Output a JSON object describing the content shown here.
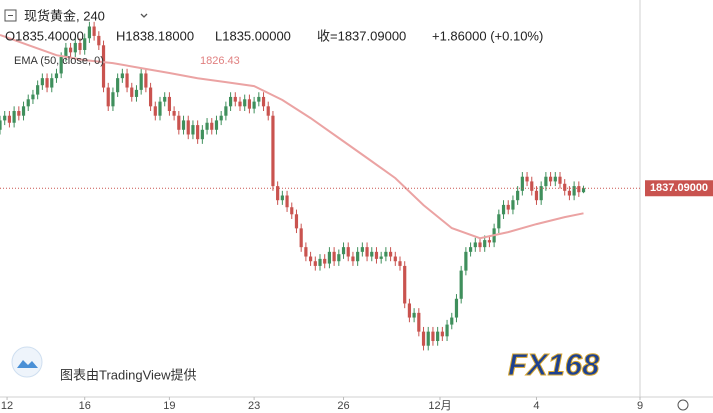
{
  "header": {
    "symbol": "现货黄金, 240",
    "open": "O1835.40000",
    "high": "H1838.18000",
    "low": "L1835.00000",
    "close": "收=1837.09000",
    "change": "+1.86000 (+0.10%)"
  },
  "chart_data": {
    "type": "candlestick",
    "candles": {
      "open": [
        1862,
        1866,
        1868,
        1865,
        1870,
        1868,
        1872,
        1875,
        1877,
        1881,
        1884,
        1880,
        1884,
        1886,
        1893,
        1897,
        1895,
        1899,
        1896,
        1901,
        1906,
        1902,
        1898,
        1880,
        1872,
        1878,
        1884,
        1886,
        1880,
        1876,
        1879,
        1886,
        1880,
        1872,
        1868,
        1874,
        1876,
        1870,
        1868,
        1862,
        1866,
        1860,
        1864,
        1858,
        1862,
        1865,
        1862,
        1866,
        1868,
        1872,
        1876,
        1874,
        1872,
        1875,
        1871,
        1874,
        1876,
        1872,
        1868,
        1838,
        1832,
        1834,
        1829,
        1826,
        1820,
        1812,
        1808,
        1806,
        1804,
        1807,
        1805,
        1810,
        1806,
        1809,
        1812,
        1808,
        1806,
        1810,
        1812,
        1808,
        1810,
        1807,
        1808,
        1810,
        1808,
        1806,
        1804,
        1788,
        1782,
        1784,
        1776,
        1770,
        1776,
        1772,
        1776,
        1774,
        1779,
        1782,
        1790,
        1802,
        1810,
        1812,
        1814,
        1812,
        1815,
        1814,
        1820,
        1826,
        1830,
        1828,
        1832,
        1836,
        1842,
        1840,
        1836,
        1832,
        1838,
        1842,
        1840,
        1842,
        1839,
        1836,
        1834,
        1838,
        1835.4
      ],
      "high": [
        1868,
        1870,
        1870,
        1872,
        1872,
        1874,
        1877,
        1879,
        1883,
        1886,
        1886,
        1886,
        1888,
        1895,
        1899,
        1899,
        1901,
        1901,
        1903,
        1908,
        1908,
        1904,
        1900,
        1882,
        1880,
        1886,
        1888,
        1888,
        1882,
        1881,
        1888,
        1888,
        1882,
        1874,
        1876,
        1878,
        1878,
        1872,
        1870,
        1868,
        1868,
        1866,
        1866,
        1864,
        1867,
        1867,
        1868,
        1870,
        1874,
        1878,
        1878,
        1876,
        1877,
        1877,
        1876,
        1878,
        1878,
        1874,
        1870,
        1840,
        1836,
        1836,
        1831,
        1828,
        1822,
        1814,
        1810,
        1808,
        1809,
        1809,
        1812,
        1812,
        1811,
        1814,
        1814,
        1810,
        1812,
        1814,
        1814,
        1812,
        1812,
        1810,
        1812,
        1812,
        1810,
        1808,
        1806,
        1790,
        1786,
        1786,
        1778,
        1778,
        1778,
        1778,
        1778,
        1781,
        1784,
        1792,
        1804,
        1812,
        1814,
        1816,
        1816,
        1817,
        1817,
        1822,
        1828,
        1832,
        1832,
        1834,
        1838,
        1844,
        1844,
        1842,
        1838,
        1840,
        1844,
        1844,
        1844,
        1844,
        1841,
        1838,
        1840,
        1840,
        1838.18
      ],
      "low": [
        1860,
        1864,
        1863,
        1863,
        1866,
        1866,
        1870,
        1873,
        1875,
        1879,
        1878,
        1878,
        1882,
        1884,
        1891,
        1893,
        1893,
        1894,
        1894,
        1899,
        1900,
        1896,
        1878,
        1870,
        1870,
        1876,
        1882,
        1878,
        1874,
        1874,
        1877,
        1878,
        1870,
        1866,
        1866,
        1872,
        1868,
        1866,
        1860,
        1860,
        1858,
        1858,
        1856,
        1856,
        1860,
        1860,
        1860,
        1864,
        1866,
        1870,
        1872,
        1870,
        1870,
        1869,
        1869,
        1872,
        1870,
        1866,
        1836,
        1830,
        1830,
        1827,
        1824,
        1818,
        1810,
        1806,
        1804,
        1802,
        1802,
        1803,
        1803,
        1804,
        1804,
        1807,
        1806,
        1804,
        1804,
        1808,
        1806,
        1806,
        1805,
        1805,
        1806,
        1806,
        1804,
        1802,
        1786,
        1780,
        1780,
        1774,
        1768,
        1768,
        1770,
        1770,
        1772,
        1772,
        1777,
        1780,
        1788,
        1800,
        1808,
        1810,
        1810,
        1810,
        1812,
        1812,
        1818,
        1824,
        1826,
        1826,
        1830,
        1834,
        1838,
        1834,
        1830,
        1830,
        1836,
        1838,
        1838,
        1837,
        1834,
        1832,
        1832,
        1833.4,
        1835
      ],
      "close": [
        1866,
        1868,
        1865,
        1870,
        1868,
        1872,
        1875,
        1877,
        1881,
        1884,
        1880,
        1884,
        1886,
        1893,
        1897,
        1895,
        1899,
        1896,
        1901,
        1906,
        1902,
        1898,
        1880,
        1872,
        1878,
        1884,
        1886,
        1880,
        1876,
        1879,
        1886,
        1880,
        1872,
        1868,
        1874,
        1876,
        1870,
        1868,
        1862,
        1866,
        1860,
        1864,
        1858,
        1862,
        1865,
        1862,
        1866,
        1868,
        1872,
        1876,
        1874,
        1872,
        1875,
        1871,
        1874,
        1876,
        1872,
        1868,
        1838,
        1832,
        1834,
        1829,
        1826,
        1820,
        1812,
        1808,
        1806,
        1804,
        1807,
        1805,
        1810,
        1806,
        1809,
        1812,
        1808,
        1806,
        1810,
        1812,
        1808,
        1810,
        1807,
        1808,
        1810,
        1808,
        1806,
        1804,
        1788,
        1782,
        1784,
        1776,
        1770,
        1776,
        1772,
        1776,
        1774,
        1779,
        1782,
        1790,
        1802,
        1810,
        1812,
        1814,
        1812,
        1815,
        1814,
        1820,
        1826,
        1830,
        1828,
        1832,
        1836,
        1842,
        1840,
        1836,
        1832,
        1838,
        1842,
        1840,
        1842,
        1839,
        1836,
        1834,
        1838,
        1835.4,
        1837.09
      ]
    },
    "up_color": "#3f8f5c",
    "down_color": "#c9534f",
    "ema": {
      "name": "EMA (50, close, 0)",
      "color": "#eba3a3",
      "x": [
        0,
        6,
        12,
        18,
        24,
        30,
        36,
        42,
        48,
        54,
        60,
        66,
        72,
        78,
        84,
        90,
        96,
        102,
        108,
        114,
        120,
        124
      ],
      "values": [
        1902.4,
        1898.1,
        1893.8,
        1891.7,
        1890.4,
        1888.3,
        1886.2,
        1884.0,
        1882.3,
        1880.6,
        1874.7,
        1867.0,
        1858.5,
        1850.0,
        1841.4,
        1829.9,
        1820.1,
        1815.8,
        1818.4,
        1821.8,
        1824.8,
        1826.43
      ]
    },
    "last_label": {
      "value": 1837.09,
      "label": "1837.09000"
    },
    "xlim": [
      0,
      136
    ],
    "ylim": [
      1749,
      1917.3
    ],
    "xticks": [
      {
        "value": 1.5,
        "label": "12"
      },
      {
        "value": 18,
        "label": "16"
      },
      {
        "value": 36,
        "label": "19"
      },
      {
        "value": 54,
        "label": "23"
      },
      {
        "value": 73,
        "label": "26"
      },
      {
        "value": 93.5,
        "label": "12月"
      },
      {
        "value": 114,
        "label": "4"
      },
      {
        "value": 136,
        "label": "9"
      }
    ]
  },
  "watermark": "图表由TradingView提供",
  "logo": "FX168"
}
